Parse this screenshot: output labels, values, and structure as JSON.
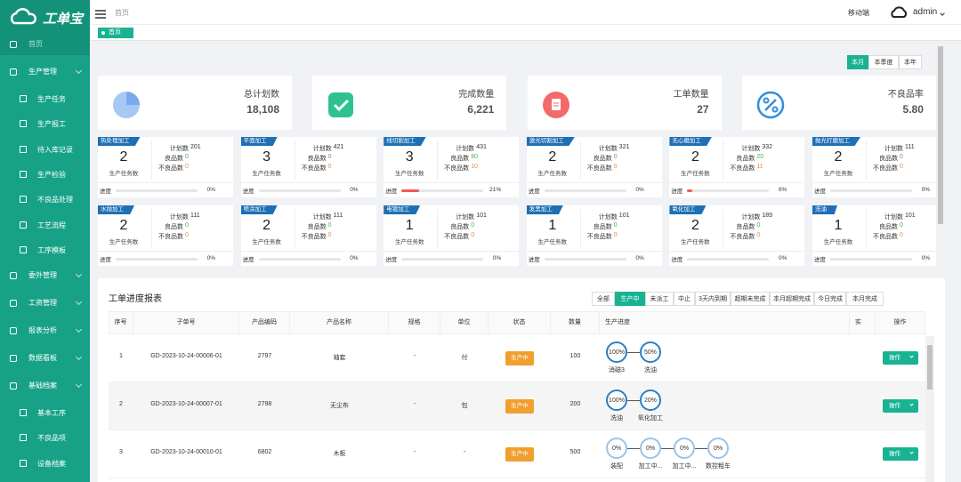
{
  "sidebar": {
    "logo": "工单宝",
    "menu": [
      {
        "label": "首页"
      },
      {
        "label": "生产管理",
        "children": [
          "生产任务",
          "生产报工",
          "待入库记录",
          "生产检验",
          "不良品处理",
          "工艺流程",
          "工序模板"
        ]
      },
      {
        "label": "委外管理"
      },
      {
        "label": "工资管理"
      },
      {
        "label": "报表分析"
      },
      {
        "label": "数据看板"
      },
      {
        "label": "基础档案",
        "children": [
          "基本工序",
          "不良品项",
          "设备档案"
        ]
      }
    ]
  },
  "topbar": {
    "breadcrumb": "首页",
    "mobile": "移动端",
    "user": "admin"
  },
  "tabs": [
    "首页"
  ],
  "periods": {
    "items": [
      "本月",
      "本季度",
      "本年"
    ],
    "active": 0
  },
  "stats": [
    {
      "label": "总计划数",
      "value": "18,108"
    },
    {
      "label": "完成数量",
      "value": "6,221"
    },
    {
      "label": "工单数量",
      "value": "27"
    },
    {
      "label": "不良品率",
      "value": "5.80"
    }
  ],
  "process_cards": {
    "labels": {
      "tasks": "生产任务数",
      "plan": "计划数",
      "good": "良品数",
      "bad": "不良品数",
      "progress": "进度"
    },
    "items": [
      {
        "name": "热处理加工",
        "tasks": 2,
        "plan": 201,
        "good": 0,
        "bad": 0,
        "progress": 0,
        "progress_label": "0%"
      },
      {
        "name": "平面加工",
        "tasks": 3,
        "plan": 421,
        "good": 0,
        "bad": 0,
        "progress": 0,
        "progress_label": "0%"
      },
      {
        "name": "线切割加工",
        "tasks": 3,
        "plan": 431,
        "good": 90,
        "bad": 10,
        "progress": 21,
        "progress_label": "21%"
      },
      {
        "name": "激光切割加工",
        "tasks": 2,
        "plan": 321,
        "good": 0,
        "bad": 0,
        "progress": 0,
        "progress_label": "0%"
      },
      {
        "name": "无心磨加工",
        "tasks": 2,
        "plan": 332,
        "good": 20,
        "bad": 11,
        "progress": 6,
        "progress_label": "6%"
      },
      {
        "name": "抛光打磨加工",
        "tasks": 2,
        "plan": 111,
        "good": 0,
        "bad": 0,
        "progress": 0,
        "progress_label": "0%"
      },
      {
        "name": "水抛加工",
        "tasks": 2,
        "plan": 111,
        "good": 0,
        "bad": 0,
        "progress": 0,
        "progress_label": "0%"
      },
      {
        "name": "喷涂加工",
        "tasks": 2,
        "plan": 111,
        "good": 0,
        "bad": 0,
        "progress": 0,
        "progress_label": "0%"
      },
      {
        "name": "电镀加工",
        "tasks": 1,
        "plan": 101,
        "good": 0,
        "bad": 0,
        "progress": 0,
        "progress_label": "0%"
      },
      {
        "name": "发黑加工",
        "tasks": 1,
        "plan": 101,
        "good": 0,
        "bad": 0,
        "progress": 0,
        "progress_label": "0%"
      },
      {
        "name": "氧化加工",
        "tasks": 2,
        "plan": 189,
        "good": 0,
        "bad": 0,
        "progress": 0,
        "progress_label": "0%"
      },
      {
        "name": "洗油",
        "tasks": 1,
        "plan": 101,
        "good": 0,
        "bad": 0,
        "progress": 0,
        "progress_label": "0%"
      }
    ]
  },
  "report": {
    "title": "工单进度报表",
    "filters": [
      "全部",
      "生产中",
      "未派工",
      "中止",
      "3天内到期",
      "超期未完成",
      "本月超期完成",
      "今日完成",
      "本月完成"
    ],
    "active_filter": 1,
    "columns": [
      "序号",
      "子单号",
      "产品编码",
      "产品名称",
      "规格",
      "单位",
      "状态",
      "数量",
      "生产进度",
      "实",
      "操作"
    ],
    "rows": [
      {
        "no": 1,
        "order": "GD-2023-10-24-00006-01",
        "code": "2797",
        "product": "袖套",
        "spec": "-",
        "unit": "付",
        "status": "生产中",
        "qty": 100,
        "steps": [
          {
            "percent": "100%",
            "name": "消磁3"
          },
          {
            "percent": "50%",
            "name": "洗油"
          }
        ],
        "action": "操作"
      },
      {
        "no": 2,
        "order": "GD-2023-10-24-00007-01",
        "code": "2798",
        "product": "无尘布",
        "spec": "-",
        "unit": "包",
        "status": "生产中",
        "qty": 200,
        "steps": [
          {
            "percent": "100%",
            "name": "洗油"
          },
          {
            "percent": "20%",
            "name": "氧化加工"
          }
        ],
        "action": "操作"
      },
      {
        "no": 3,
        "order": "GD-2023-10-24-00010-01",
        "code": "6802",
        "product": "木板",
        "spec": "-",
        "unit": "-",
        "status": "生产中",
        "qty": 500,
        "steps": [
          {
            "percent": "0%",
            "name": "装配"
          },
          {
            "percent": "0%",
            "name": "加工中..."
          },
          {
            "percent": "0%",
            "name": "加工中..."
          },
          {
            "percent": "0%",
            "name": "数控粗车"
          }
        ],
        "action": "操作"
      }
    ]
  }
}
